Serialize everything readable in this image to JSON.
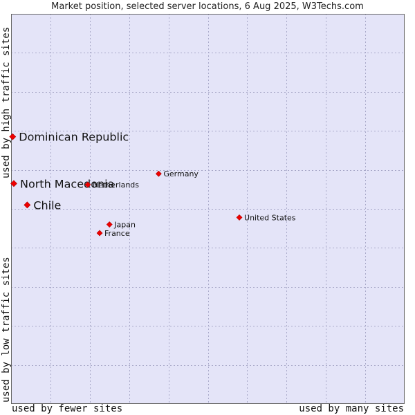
{
  "chart_data": {
    "type": "scatter",
    "title": "Market position, selected server locations, 6 Aug 2025, W3Techs.com",
    "xlabel_left": "used by fewer sites",
    "xlabel_right": "used by many sites",
    "ylabel_top": "used by high traffic sites",
    "ylabel_bottom": "used by low traffic sites",
    "xlim": [
      0,
      10
    ],
    "ylim": [
      0,
      10
    ],
    "grid": true,
    "colors": {
      "plot_background": "#e4e4f8",
      "grid": "#a8a8c8",
      "marker": "#ee0000"
    },
    "points": [
      {
        "label": "Dominican Republic",
        "x": 0.04,
        "y": 6.85,
        "highlight": true
      },
      {
        "label": "North Macedonia",
        "x": 0.07,
        "y": 5.65,
        "highlight": true
      },
      {
        "label": "Chile",
        "x": 0.41,
        "y": 5.1,
        "highlight": true
      },
      {
        "label": "Germany",
        "x": 3.75,
        "y": 5.9,
        "highlight": false
      },
      {
        "label": "Netherlands",
        "x": 1.95,
        "y": 5.62,
        "highlight": false
      },
      {
        "label": "United States",
        "x": 5.8,
        "y": 4.78,
        "highlight": false
      },
      {
        "label": "Japan",
        "x": 2.5,
        "y": 4.6,
        "highlight": false
      },
      {
        "label": "France",
        "x": 2.25,
        "y": 4.38,
        "highlight": false
      }
    ]
  }
}
